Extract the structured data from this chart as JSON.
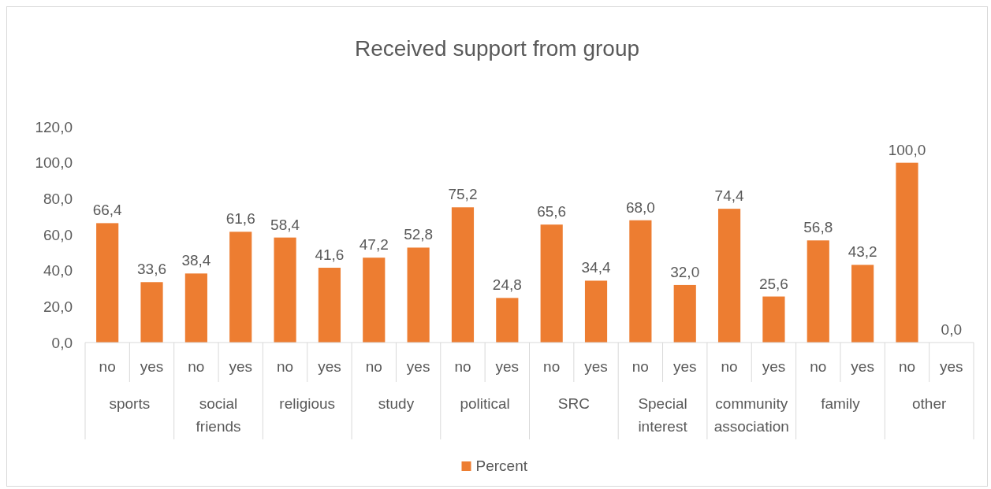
{
  "chart_data": {
    "type": "bar",
    "title": "Received support from group",
    "categories": [
      "no",
      "yes",
      "no",
      "yes",
      "no",
      "yes",
      "no",
      "yes",
      "no",
      "yes",
      "no",
      "yes",
      "no",
      "yes",
      "no",
      "yes",
      "no",
      "yes",
      "no",
      "yes"
    ],
    "annotations": [
      "sports",
      "social friends",
      "religious",
      "study",
      "political",
      "SRC",
      "Special interest",
      "community association",
      "family",
      "other"
    ],
    "series": [
      {
        "name": "Percent",
        "color": "#ed7d31",
        "values": [
          66.4,
          33.6,
          38.4,
          61.6,
          58.4,
          41.6,
          47.2,
          52.8,
          75.2,
          24.8,
          65.6,
          34.4,
          68.0,
          32.0,
          74.4,
          25.6,
          56.8,
          43.2,
          100.0,
          0.0
        ],
        "value_labels": [
          "66,4",
          "33,6",
          "38,4",
          "61,6",
          "58,4",
          "41,6",
          "47,2",
          "52,8",
          "75,2",
          "24,8",
          "65,6",
          "34,4",
          "68,0",
          "32,0",
          "74,4",
          "25,6",
          "56,8",
          "43,2",
          "100,0",
          "0,0"
        ]
      }
    ],
    "ylim": [
      0,
      120
    ],
    "yticks": [
      {
        "value": 0,
        "label": "0,0"
      },
      {
        "value": 20,
        "label": "20,0"
      },
      {
        "value": 40,
        "label": "40,0"
      },
      {
        "value": 60,
        "label": "60,0"
      },
      {
        "value": 80,
        "label": "80,0"
      },
      {
        "value": 100,
        "label": "100,0"
      },
      {
        "value": 120,
        "label": "120,0"
      }
    ],
    "grid": false,
    "legend": "bottom"
  }
}
